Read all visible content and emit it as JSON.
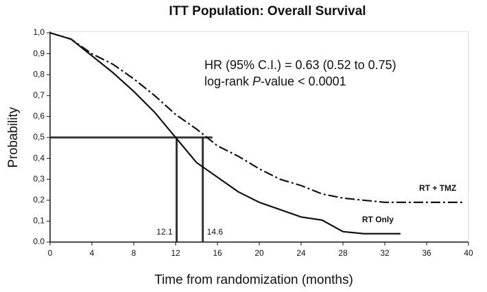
{
  "chart_data": {
    "type": "line",
    "title": "ITT Population: Overall Survival",
    "x_label": "Time from randomization (months)",
    "y_label": "Probability",
    "annotations": {
      "hr": "HR (95% C.I.) = 0.63 (0.52 to 0.75)",
      "logrank": [
        "log-rank ",
        "P",
        "-value < 0.0001"
      ]
    },
    "xlim": [
      0,
      40
    ],
    "xticks": [
      0,
      4,
      8,
      12,
      16,
      20,
      24,
      28,
      32,
      36,
      40
    ],
    "ylim": [
      0,
      1
    ],
    "yticks": [
      {
        "value": 0,
        "label": "0.0"
      },
      {
        "value": 0.1,
        "label": "0,1"
      },
      {
        "value": 0.2,
        "label": "0,2"
      },
      {
        "value": 0.3,
        "label": "0,3"
      },
      {
        "value": 0.4,
        "label": "0,4"
      },
      {
        "value": 0.5,
        "label": "0,5"
      },
      {
        "value": 0.6,
        "label": "0,6"
      },
      {
        "value": 0.7,
        "label": "0,7"
      },
      {
        "value": 0.8,
        "label": "0,8"
      },
      {
        "value": 0.9,
        "label": "0,9"
      },
      {
        "value": 1,
        "label": "1,0"
      }
    ],
    "reference_probability": 0.5,
    "medians": [
      12.1,
      14.6
    ],
    "series": [
      {
        "name": "RT + TMZ",
        "color": "#111111",
        "style": "dash-dot",
        "x": [
          0,
          2,
          4,
          6,
          8,
          10,
          12,
          14,
          16,
          18,
          20,
          22,
          24,
          26,
          28,
          30,
          32,
          35,
          39.5
        ],
        "values": [
          1.0,
          0.97,
          0.9,
          0.85,
          0.78,
          0.7,
          0.61,
          0.54,
          0.46,
          0.41,
          0.35,
          0.3,
          0.27,
          0.23,
          0.21,
          0.2,
          0.19,
          0.19,
          0.19
        ]
      },
      {
        "name": "RT Only",
        "color": "#111111",
        "style": "solid",
        "x": [
          0,
          2,
          4,
          6,
          8,
          10,
          12,
          14,
          16,
          18,
          20,
          22,
          24,
          26,
          28,
          30,
          33.5
        ],
        "values": [
          1.0,
          0.97,
          0.89,
          0.81,
          0.72,
          0.62,
          0.5,
          0.38,
          0.31,
          0.24,
          0.19,
          0.155,
          0.12,
          0.105,
          0.05,
          0.04,
          0.04
        ]
      }
    ]
  }
}
